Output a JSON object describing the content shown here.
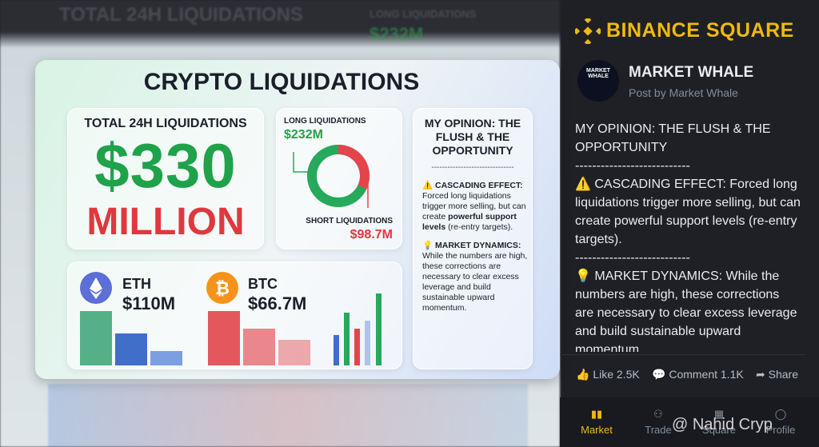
{
  "background": {
    "title": "TOTAL 24H LIQUIDATIONS",
    "long_label": "LONG LIQUIDATIONS",
    "long_value": "$232M"
  },
  "infographic": {
    "title": "CRYPTO LIQUIDATIONS",
    "total": {
      "label": "TOTAL 24H LIQUIDATIONS",
      "amount": "$330",
      "unit": "MILLION"
    },
    "long": {
      "label": "LONG LIQUIDATIONS",
      "value": "$232M"
    },
    "short": {
      "label": "SHORT LIQUIDATIONS",
      "value": "$98.7M"
    },
    "coins": [
      {
        "name": "ETH",
        "value": "$110M"
      },
      {
        "name": "BTC",
        "value": "$66.7M"
      }
    ],
    "opinion": {
      "title": "MY OPINION: THE FLUSH & THE OPPORTUNITY",
      "divider": "-------------------------------",
      "sections": [
        {
          "heading": "⚠️ CASCADING EFFECT:",
          "body_start": "Forced long liquidations trigger more selling, but can create ",
          "body_bold": "powerful support levels",
          "body_end": " (re-entry targets)."
        },
        {
          "heading": "💡 MARKET DYNAMICS:",
          "body_start": "While the numbers are high, these corrections are necessary to clear excess leverage and build sustainable upward momentum.",
          "body_bold": "",
          "body_end": ""
        }
      ]
    }
  },
  "header": {
    "brand": "BINANCE SQUARE"
  },
  "post": {
    "avatar_text": "MARKET WHALE",
    "author": "MARKET WHALE",
    "subtitle": "Post by Market Whale",
    "paragraphs": [
      "MY OPINION: THE FLUSH & THE OPPORTUNITY",
      "---------------------------",
      "⚠️ CASCADING EFFECT: Forced long liquidations trigger more selling, but can create powerful support levels (re-entry targets).",
      "---------------------------",
      "💡 MARKET DYNAMICS: While the numbers are high, these corrections are necessary to clear excess leverage and build sustainable upward momentum."
    ]
  },
  "actions": {
    "like": "Like 2.5K",
    "comment": "Comment 1.1K",
    "share": "Share"
  },
  "nav": [
    "Market",
    "Trade",
    "Square",
    "Profile"
  ],
  "watermark": "@ Nahid Cryp"
}
